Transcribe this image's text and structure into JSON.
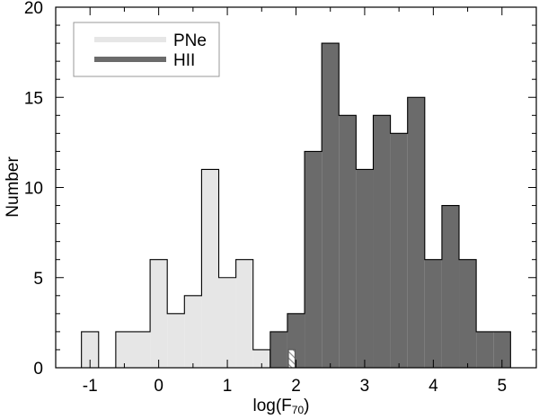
{
  "chart_data": {
    "type": "bar",
    "xlabel": "log(F",
    "xlabel_sub": "70",
    "xlabel_close": ")",
    "ylabel": "Number",
    "xlim": [
      -1.5,
      5.5
    ],
    "ylim": [
      0,
      20
    ],
    "bin_width": 0.25,
    "xticks": [
      -1,
      0,
      1,
      2,
      3,
      4,
      5
    ],
    "yticks": [
      0,
      5,
      10,
      15,
      20
    ],
    "legend_position": "top-left",
    "series": [
      {
        "name": "PNe",
        "color": "#e6e6e6",
        "bins": [
          {
            "x": -1.0,
            "value": 2
          },
          {
            "x": -0.5,
            "value": 2
          },
          {
            "x": -0.25,
            "value": 2
          },
          {
            "x": 0.0,
            "value": 6
          },
          {
            "x": 0.25,
            "value": 3
          },
          {
            "x": 0.5,
            "value": 4
          },
          {
            "x": 0.75,
            "value": 11
          },
          {
            "x": 1.0,
            "value": 5
          },
          {
            "x": 1.25,
            "value": 6
          },
          {
            "x": 1.5,
            "value": 1
          }
        ]
      },
      {
        "name": "HII",
        "color": "#6b6b6b",
        "bins": [
          {
            "x": 1.75,
            "value": 2
          },
          {
            "x": 2.0,
            "value": 3
          },
          {
            "x": 2.25,
            "value": 12
          },
          {
            "x": 2.5,
            "value": 18
          },
          {
            "x": 2.75,
            "value": 14
          },
          {
            "x": 3.0,
            "value": 11
          },
          {
            "x": 3.25,
            "value": 14
          },
          {
            "x": 3.5,
            "value": 13
          },
          {
            "x": 3.75,
            "value": 15
          },
          {
            "x": 4.0,
            "value": 6
          },
          {
            "x": 4.25,
            "value": 9
          },
          {
            "x": 4.5,
            "value": 6
          },
          {
            "x": 4.75,
            "value": 2
          },
          {
            "x": 5.0,
            "value": 2
          }
        ]
      }
    ],
    "overlap": [
      {
        "x": 2.0,
        "value": 1
      }
    ]
  }
}
